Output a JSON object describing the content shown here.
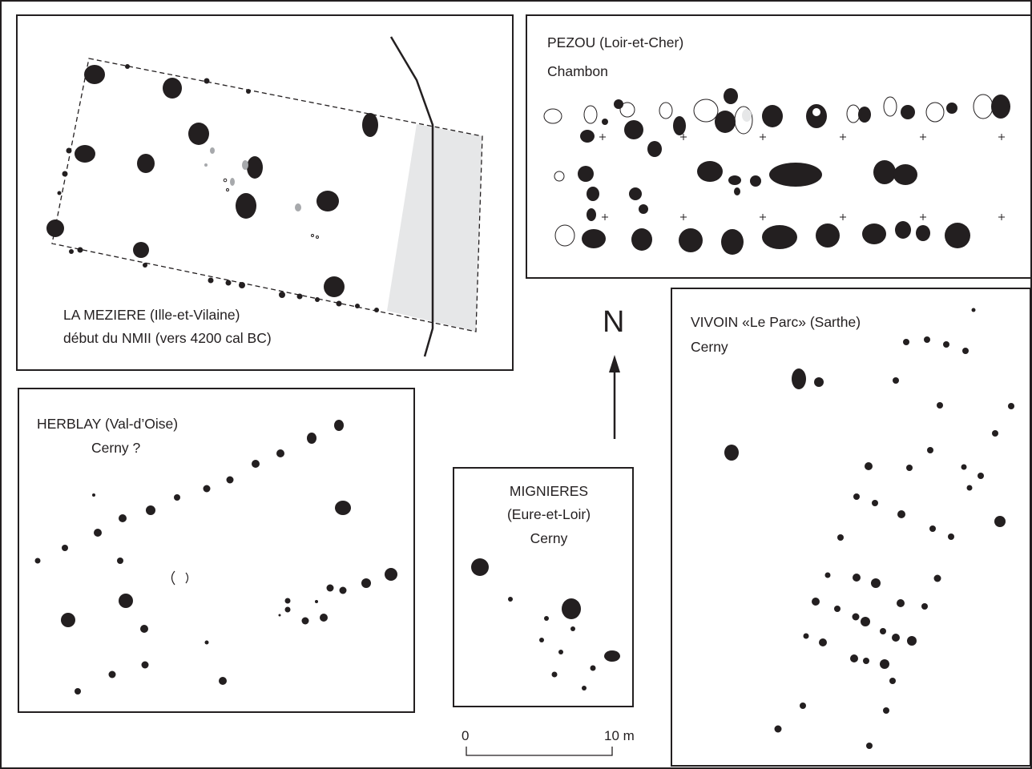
{
  "sites": {
    "la_meziere": {
      "name": "LA MEZIERE (Ille-et-Vilaine)",
      "period": "début du NMII (vers 4200 cal BC)"
    },
    "pezou": {
      "name": "PEZOU (Loir-et-Cher)",
      "period": "Chambon"
    },
    "vivoin": {
      "name": "VIVOIN «Le Parc» (Sarthe)",
      "period": "Cerny"
    },
    "herblay": {
      "name": "HERBLAY (Val-d’Oise)",
      "period": "Cerny ?"
    },
    "mignieres": {
      "name": "MIGNIERES",
      "name2": "(Eure-et-Loir)",
      "period": "Cerny"
    }
  },
  "north_arrow": {
    "label": "N"
  },
  "scale_bar": {
    "start": "0",
    "end": "10 m"
  },
  "colors": {
    "ink": "#231f20",
    "grey_fill": "#e6e7e8",
    "grey_post": "#a7a9ac",
    "background": "#ffffff"
  }
}
